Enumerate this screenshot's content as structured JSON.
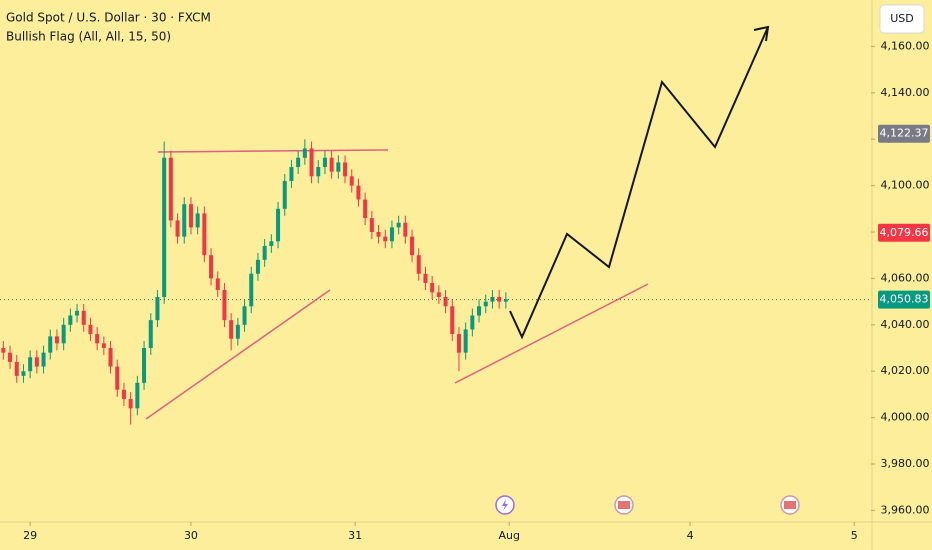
{
  "chart_data": {
    "type": "candlestick",
    "title": "Gold Spot / U.S. Dollar · 30 · FXCM",
    "subtitle": "Bullish Flag (All, All, 15, 50)",
    "currency": "USD",
    "up_color": "#089981",
    "down_color": "#f23645",
    "open": [
      4030,
      4028,
      4024,
      4018,
      4020,
      4026,
      4022,
      4028,
      4035,
      4032,
      4040,
      4044,
      4046,
      4040,
      4036,
      4032,
      4030,
      4022,
      4012,
      4008,
      4004,
      4015,
      4030,
      4042,
      4052,
      4112,
      4085,
      4078,
      4092,
      4082,
      4088,
      4070,
      4060,
      4055,
      4042,
      4034,
      4040,
      4048,
      4062,
      4068,
      4074,
      4076,
      4090,
      4102,
      4108,
      4112,
      4116,
      4104,
      4108,
      4112,
      4106,
      4110,
      4104,
      4100,
      4094,
      4086,
      4080,
      4078,
      4076,
      4082,
      4084,
      4078,
      4070,
      4062,
      4058,
      4054,
      4052,
      4048,
      4036,
      4028,
      4038,
      4044,
      4048,
      4050,
      4052,
      4050
    ],
    "high": [
      4033,
      4031,
      4027,
      4023,
      4029,
      4029,
      4031,
      4038,
      4038,
      4043,
      4047,
      4049,
      4049,
      4043,
      4039,
      4035,
      4033,
      4025,
      4015,
      4011,
      4018,
      4033,
      4045,
      4055,
      4119,
      4115,
      4088,
      4095,
      4095,
      4091,
      4091,
      4073,
      4063,
      4058,
      4045,
      4043,
      4051,
      4065,
      4071,
      4077,
      4079,
      4093,
      4105,
      4111,
      4115,
      4120,
      4119,
      4111,
      4115,
      4115,
      4113,
      4113,
      4107,
      4103,
      4097,
      4089,
      4083,
      4081,
      4085,
      4087,
      4087,
      4081,
      4073,
      4065,
      4061,
      4057,
      4055,
      4051,
      4039,
      4041,
      4047,
      4051,
      4053,
      4055,
      4055,
      4054
    ],
    "low": [
      4025,
      4021,
      4015,
      4015,
      4017,
      4019,
      4019,
      4025,
      4029,
      4029,
      4037,
      4041,
      4037,
      4033,
      4029,
      4027,
      4019,
      4009,
      4005,
      3997,
      4001,
      4012,
      4027,
      4039,
      4049,
      4082,
      4075,
      4075,
      4079,
      4079,
      4067,
      4057,
      4052,
      4039,
      4029,
      4031,
      4037,
      4045,
      4059,
      4065,
      4071,
      4073,
      4087,
      4099,
      4105,
      4109,
      4101,
      4101,
      4105,
      4103,
      4103,
      4101,
      4097,
      4091,
      4083,
      4077,
      4075,
      4073,
      4073,
      4079,
      4075,
      4067,
      4059,
      4055,
      4051,
      4049,
      4045,
      4033,
      4020,
      4025,
      4035,
      4041,
      4045,
      4047,
      4047,
      4047
    ],
    "close": [
      4028,
      4024,
      4018,
      4020,
      4026,
      4022,
      4028,
      4035,
      4032,
      4040,
      4044,
      4046,
      4040,
      4036,
      4032,
      4030,
      4022,
      4012,
      4008,
      4004,
      4015,
      4030,
      4042,
      4052,
      4112,
      4085,
      4078,
      4092,
      4082,
      4088,
      4070,
      4060,
      4055,
      4042,
      4034,
      4040,
      4048,
      4062,
      4068,
      4074,
      4076,
      4090,
      4102,
      4108,
      4112,
      4116,
      4104,
      4108,
      4112,
      4106,
      4110,
      4104,
      4100,
      4094,
      4086,
      4080,
      4078,
      4076,
      4082,
      4084,
      4078,
      4070,
      4062,
      4058,
      4054,
      4052,
      4048,
      4036,
      4028,
      4038,
      4044,
      4048,
      4050,
      4052,
      4050,
      4051
    ],
    "xlim": [
      -0.5,
      129.5
    ],
    "xticks": [
      {
        "value": 4,
        "label": "29"
      },
      {
        "value": 28,
        "label": "30"
      },
      {
        "value": 52.5,
        "label": "31"
      },
      {
        "value": 75.5,
        "label": "Aug"
      },
      {
        "value": 102.5,
        "label": "4"
      },
      {
        "value": 127,
        "label": "5"
      }
    ],
    "ylim": [
      3955,
      4180
    ],
    "yticks": [
      {
        "value": 3960,
        "label": "3,960.00"
      },
      {
        "value": 3980,
        "label": "3,980.00"
      },
      {
        "value": 4000,
        "label": "4,000.00"
      },
      {
        "value": 4020,
        "label": "4,020.00"
      },
      {
        "value": 4040,
        "label": "4,040.00"
      },
      {
        "value": 4060,
        "label": "4,060.00"
      },
      {
        "value": 4080,
        "label": "4,080.00"
      },
      {
        "value": 4100,
        "label": "4,100.00"
      },
      {
        "value": 4120,
        "label": "4,120.00"
      },
      {
        "value": 4140,
        "label": "4,140.00"
      },
      {
        "value": 4160,
        "label": "4,160.00"
      }
    ],
    "price_labels": [
      {
        "value": 4122.37,
        "label": "4,122.37",
        "color": "#787b86"
      },
      {
        "value": 4079.66,
        "label": "4,079.66",
        "color": "#f23645"
      },
      {
        "value": 4050.83,
        "label": "4,050.83",
        "color": "#089981"
      }
    ],
    "current_price_line": 4050.83
  }
}
